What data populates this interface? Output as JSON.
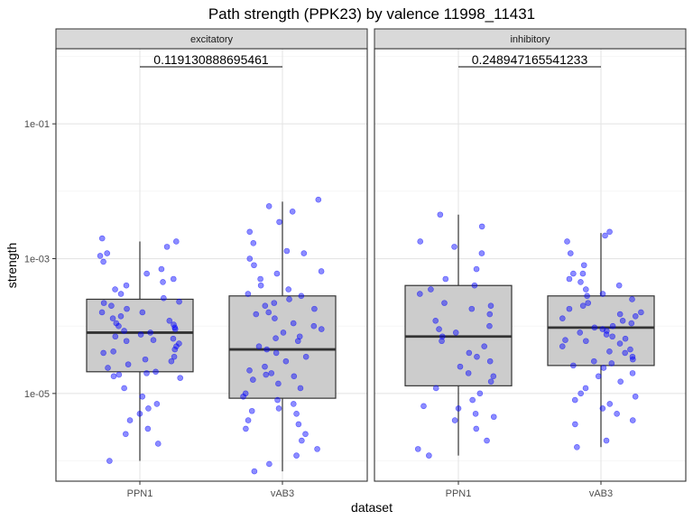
{
  "chart_data": {
    "type": "boxplot",
    "title": "Path strength (PPK23) by valence 11998_11431",
    "xlabel": "dataset",
    "ylabel": "strength",
    "y_scale": "log10",
    "ylim": [
      5e-07,
      1.3
    ],
    "y_ticks": [
      {
        "value": 1e-05,
        "label": "1e-05"
      },
      {
        "value": 0.001,
        "label": "1e-03"
      },
      {
        "value": 0.1,
        "label": "1e-01"
      }
    ],
    "categories": [
      "PPN1",
      "vAB3"
    ],
    "panels": [
      {
        "name": "excitatory",
        "comparison_label": "0.119130888695461",
        "boxes": [
          {
            "category": "PPN1",
            "whisker_low": 1e-06,
            "q1": 2.1e-05,
            "median": 8e-05,
            "q3": 0.00025,
            "whisker_high": 0.0018,
            "points": [
              0.0012,
              0.0015,
              0.0018,
              0.002,
              0.0011,
              0.0009,
              0.0007,
              0.0006,
              0.0005,
              0.00045,
              0.0004,
              0.00035,
              0.0003,
              0.00026,
              0.00023,
              0.0002,
              0.00018,
              0.00016,
              0.00014,
              0.00013,
              0.00012,
              0.00011,
              0.000105,
              0.0001,
              9.5e-05,
              9e-05,
              8.5e-05,
              8e-05,
              7.5e-05,
              7e-05,
              6.5e-05,
              6e-05,
              5.5e-05,
              5e-05,
              4.5e-05,
              4e-05,
              3.5e-05,
              3e-05,
              2.7e-05,
              2.4e-05,
              2.1e-05,
              2e-05,
              1.9e-05,
              1.8e-05,
              1.7e-05,
              1.2e-05,
              9e-06,
              7e-06,
              6e-06,
              5e-06,
              4e-06,
              3e-06,
              2.5e-06,
              1.8e-06,
              1e-06,
              0.00016,
              0.00022,
              3.2e-05,
              4.2e-05,
              6.2e-05
            ]
          },
          {
            "category": "vAB3",
            "whisker_low": 7e-07,
            "q1": 8.5e-06,
            "median": 4.5e-05,
            "q3": 0.00028,
            "whisker_high": 0.007,
            "points": [
              0.0075,
              0.006,
              0.005,
              0.0035,
              0.0025,
              0.0017,
              0.0013,
              0.001,
              0.0008,
              0.0006,
              0.0005,
              0.0004,
              0.00035,
              0.0003,
              0.00028,
              0.00025,
              0.00022,
              0.0002,
              0.00018,
              0.00015,
              0.00013,
              0.00011,
              0.0001,
              9e-05,
              8e-05,
              7e-05,
              6e-05,
              5e-05,
              4.5e-05,
              4e-05,
              3.5e-05,
              3e-05,
              2.5e-05,
              2e-05,
              1.9e-05,
              1.8e-05,
              1.6e-05,
              1.4e-05,
              1.2e-05,
              1e-05,
              9e-06,
              8e-06,
              7e-06,
              6e-06,
              5e-06,
              4e-06,
              3.5e-06,
              3e-06,
              2.5e-06,
              2e-06,
              1.5e-06,
              1.2e-06,
              9e-07,
              7e-07,
              0.0012,
              0.00065,
              0.00016,
              6.6e-05,
              2.2e-05,
              5.5e-06
            ]
          }
        ]
      },
      {
        "name": "inhibitory",
        "comparison_label": "0.248947165541233",
        "boxes": [
          {
            "category": "PPN1",
            "whisker_low": 1.2e-06,
            "q1": 1.3e-05,
            "median": 7e-05,
            "q3": 0.0004,
            "whisker_high": 0.0045,
            "points": [
              0.0045,
              0.003,
              0.0018,
              0.0015,
              0.0012,
              0.0007,
              0.0005,
              0.0004,
              0.00035,
              0.0003,
              0.0002,
              0.00018,
              0.00015,
              0.00012,
              0.0001,
              8e-05,
              7e-05,
              6e-05,
              5e-05,
              4e-05,
              3e-05,
              2.5e-05,
              2e-05,
              1.8e-05,
              1.5e-05,
              1.2e-05,
              1e-05,
              8e-06,
              6e-06,
              5e-06,
              4e-06,
              3e-06,
              2e-06,
              1.5e-06,
              1.2e-06,
              0.00022,
              9e-05,
              3.5e-05,
              6.5e-06,
              4.5e-06
            ]
          },
          {
            "category": "vAB3",
            "whisker_low": 1.6e-06,
            "q1": 2.6e-05,
            "median": 9.5e-05,
            "q3": 0.00028,
            "whisker_high": 0.0024,
            "points": [
              0.0025,
              0.0022,
              0.0018,
              0.0012,
              0.0008,
              0.0006,
              0.0005,
              0.00045,
              0.0004,
              0.00035,
              0.0003,
              0.00028,
              0.00025,
              0.00022,
              0.0002,
              0.00018,
              0.00016,
              0.00014,
              0.00013,
              0.00012,
              0.00011,
              0.0001,
              9.5e-05,
              9e-05,
              8.5e-05,
              8e-05,
              7.5e-05,
              7e-05,
              6.5e-05,
              6e-05,
              5.5e-05,
              5e-05,
              4.5e-05,
              4e-05,
              3.5e-05,
              3e-05,
              2.8e-05,
              2.6e-05,
              2.4e-05,
              2e-05,
              1.8e-05,
              1.5e-05,
              1.2e-05,
              1e-05,
              9e-06,
              7e-06,
              6e-06,
              5e-06,
              4e-06,
              3.5e-06,
              2e-06,
              1.6e-06,
              0.0006,
              0.00015,
              6.2e-05,
              4.2e-05,
              3.2e-05,
              8e-06
            ]
          }
        ]
      }
    ],
    "grid": true,
    "point_color": "#0000ff",
    "box_fill": "#cccccc",
    "legend": "none"
  }
}
